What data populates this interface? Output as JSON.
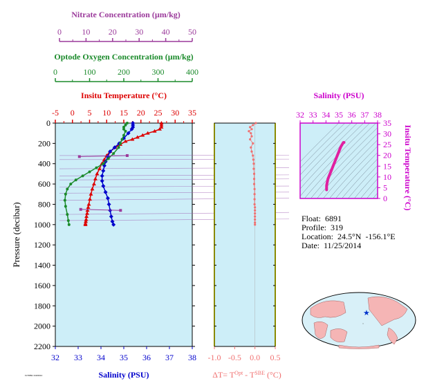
{
  "float_info": {
    "float": "Float:  6891",
    "profile": "Profile:  319",
    "location": "Location:  24.5°N  -156.1°E",
    "date": "Date:  11/25/2014"
  },
  "footer_tag": "FLT6891 319/2014",
  "colors": {
    "nitrate": "#9b3a9b",
    "oxygen": "#1a8a2a",
    "temperature": "#dd0000",
    "salinity": "#0000cc",
    "delta_t": "#f07070",
    "ts_curve": "#e020a0",
    "panel_bg": "#cdeef8",
    "ts_axis": "#cc00cc"
  },
  "chart_data": [
    {
      "type": "line",
      "title": "",
      "ylabel": "Pressure (decibar)",
      "ylim": [
        2200,
        0
      ],
      "y_ticks": [
        0,
        200,
        400,
        600,
        800,
        1000,
        1200,
        1400,
        1600,
        1800,
        2000,
        2200
      ],
      "axes": {
        "nitrate": {
          "label": "Nitrate Concentration (µm/kg)",
          "range": [
            0,
            50
          ],
          "ticks": [
            0,
            10,
            20,
            30,
            40,
            50
          ]
        },
        "oxygen": {
          "label": "Optode Oxygen Concentration (µm/kg)",
          "range": [
            0,
            400
          ],
          "ticks": [
            0,
            100,
            200,
            300,
            400
          ]
        },
        "temperature": {
          "label": "Insitu Temperature (°C)",
          "range": [
            -5,
            35
          ],
          "ticks": [
            -5,
            0,
            5,
            10,
            15,
            20,
            25,
            30,
            35
          ]
        },
        "salinity": {
          "label": "Salinity (PSU)",
          "range": [
            32,
            38
          ],
          "ticks": [
            32,
            33,
            34,
            35,
            36,
            37,
            38
          ]
        }
      },
      "series": [
        {
          "name": "Insitu Temperature",
          "axis": "temperature",
          "x": [
            26,
            26,
            26,
            25.5,
            24,
            22,
            20.5,
            19,
            17.5,
            15.5,
            14,
            12.5,
            11,
            10,
            9.3,
            8.6,
            7.9,
            7.2,
            6.7,
            6.3,
            5.8,
            5.4,
            5.1,
            4.8,
            4.6,
            4.4,
            4.3,
            4.1,
            4,
            3.9,
            3.8,
            3.8
          ],
          "y": [
            0,
            20,
            40,
            60,
            80,
            100,
            120,
            140,
            160,
            180,
            210,
            240,
            280,
            320,
            360,
            400,
            450,
            500,
            550,
            600,
            650,
            700,
            750,
            800,
            830,
            860,
            890,
            920,
            950,
            970,
            990,
            1000
          ]
        },
        {
          "name": "Salinity",
          "axis": "salinity",
          "x": [
            35.4,
            35.4,
            35.4,
            35.35,
            35.2,
            35,
            34.8,
            34.6,
            34.4,
            34.3,
            34.2,
            34.15,
            34.1,
            34.05,
            34.05,
            34.1,
            34.2,
            34.3,
            34.35,
            34.4,
            34.45,
            34.5,
            34.55
          ],
          "y": [
            0,
            20,
            40,
            60,
            100,
            150,
            200,
            240,
            280,
            330,
            380,
            420,
            470,
            520,
            570,
            620,
            680,
            740,
            800,
            860,
            920,
            970,
            1000
          ]
        },
        {
          "name": "Optode Oxygen Concentration",
          "axis": "oxygen",
          "x": [
            210,
            205,
            200,
            200,
            205,
            200,
            195,
            190,
            185,
            170,
            155,
            140,
            120,
            100,
            80,
            60,
            45,
            35,
            30,
            28,
            30,
            35,
            38,
            40
          ],
          "y": [
            0,
            20,
            40,
            60,
            80,
            120,
            160,
            200,
            240,
            300,
            350,
            400,
            440,
            480,
            520,
            560,
            600,
            650,
            700,
            760,
            820,
            900,
            960,
            1000
          ]
        },
        {
          "name": "Nitrate Concentration",
          "axis": "nitrate",
          "x": [
            7.5,
            25.5,
            8,
            23
          ],
          "y": [
            330,
            320,
            850,
            860
          ]
        }
      ],
      "float_context_lines": [
        {
          "x1": 0,
          "y1": 320,
          "x2": 50,
          "y2": 315
        },
        {
          "x1": 0,
          "y1": 360,
          "x2": 50,
          "y2": 355
        },
        {
          "x1": 0,
          "y1": 450,
          "x2": 50,
          "y2": 440
        },
        {
          "x1": 0,
          "y1": 520,
          "x2": 50,
          "y2": 510
        },
        {
          "x1": 0,
          "y1": 560,
          "x2": 50,
          "y2": 550
        },
        {
          "x1": 0,
          "y1": 630,
          "x2": 50,
          "y2": 620
        },
        {
          "x1": 0,
          "y1": 690,
          "x2": 50,
          "y2": 680
        },
        {
          "x1": 0,
          "y1": 760,
          "x2": 50,
          "y2": 740
        },
        {
          "x1": 0,
          "y1": 900,
          "x2": 50,
          "y2": 880
        },
        {
          "x1": 0,
          "y1": 960,
          "x2": 50,
          "y2": 945
        }
      ]
    },
    {
      "type": "scatter",
      "title": "",
      "xlabel": "ΔT= T^Opt - T^SBE (°C)",
      "xlim": [
        -1.0,
        0.5
      ],
      "x_ticks": [
        -1.0,
        -0.5,
        0.0,
        0.5
      ],
      "x_tick_labels": [
        "-1.0",
        "-0.5",
        "0.0",
        "0.5"
      ],
      "ylim": [
        2200,
        0
      ],
      "x": [
        0.02,
        -0.05,
        -0.12,
        -0.08,
        -0.15,
        -0.1,
        -0.08,
        -0.12,
        -0.05,
        -0.1,
        -0.08,
        -0.05,
        -0.04,
        -0.03,
        -0.03,
        -0.02,
        -0.02,
        -0.02,
        -0.01,
        -0.01,
        -0.01,
        -0.01,
        0,
        0,
        0,
        0,
        0,
        0,
        0
      ],
      "y": [
        0,
        20,
        40,
        60,
        80,
        100,
        130,
        160,
        200,
        240,
        280,
        320,
        360,
        400,
        450,
        500,
        550,
        600,
        650,
        700,
        750,
        800,
        830,
        860,
        890,
        920,
        950,
        980,
        1000
      ]
    },
    {
      "type": "scatter",
      "title": "",
      "x_axis": {
        "label": "Salinity (PSU)",
        "range": [
          32,
          38
        ],
        "ticks": [
          32,
          33,
          34,
          35,
          36,
          37,
          38
        ]
      },
      "y_axis": {
        "label": "Insitu Temperature (°C)",
        "range": [
          0,
          35
        ],
        "ticks": [
          0,
          5,
          10,
          15,
          20,
          25,
          30,
          35
        ]
      },
      "x": [
        34.05,
        34.05,
        34.05,
        34.1,
        34.15,
        34.25,
        34.35,
        34.45,
        34.55,
        34.65,
        34.75,
        34.85,
        34.95,
        35.05,
        35.15,
        35.25,
        35.3,
        35.35,
        35.4
      ],
      "y": [
        4,
        5,
        6,
        7.5,
        9,
        10.5,
        12,
        13.5,
        15,
        16.5,
        18,
        19.5,
        21,
        22.5,
        24,
        25,
        25.5,
        26,
        26
      ]
    }
  ],
  "map": {
    "marker_lat": 24.5,
    "marker_lon": -156.1
  }
}
